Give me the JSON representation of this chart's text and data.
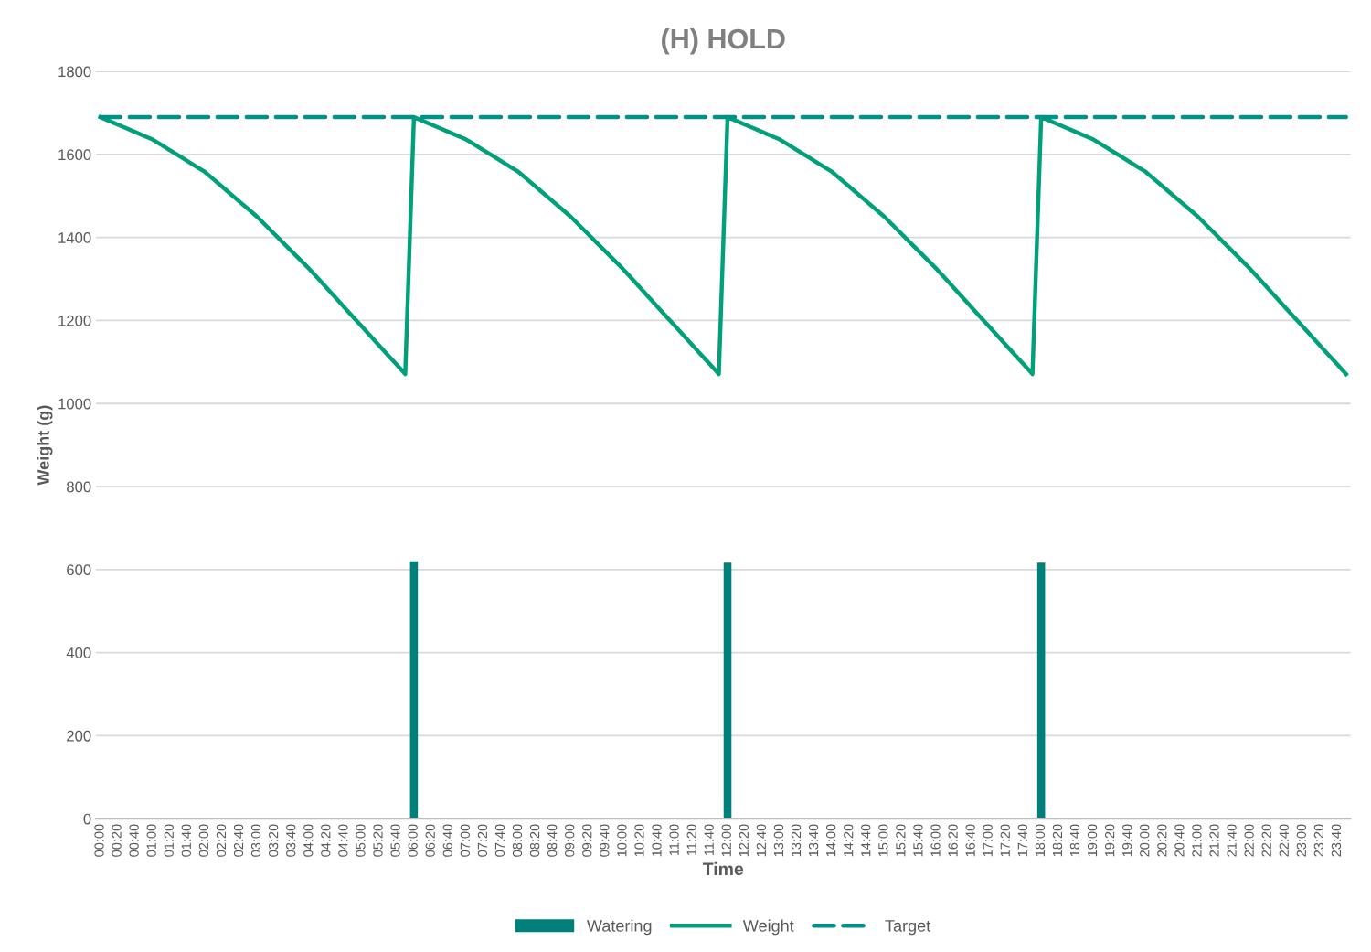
{
  "chart_data": {
    "type": "bar",
    "title": "(H) HOLD",
    "xlabel": "Time",
    "ylabel": "Weight (g)",
    "categories": [
      "00:00",
      null,
      "00:20",
      null,
      "00:40",
      null,
      "01:00",
      null,
      "01:20",
      null,
      "01:40",
      null,
      "02:00",
      null,
      "02:20",
      null,
      "02:40",
      null,
      "03:00",
      null,
      "03:20",
      null,
      "03:40",
      null,
      "04:00",
      null,
      "04:20",
      null,
      "04:40",
      null,
      "05:00",
      null,
      "05:20",
      null,
      "05:40",
      null,
      "06:00",
      null,
      "06:20",
      null,
      "06:40",
      null,
      "07:00",
      null,
      "07:20",
      null,
      "07:40",
      null,
      "08:00",
      null,
      "08:20",
      null,
      "08:40",
      null,
      "09:00",
      null,
      "09:20",
      null,
      "09:40",
      null,
      "10:00",
      null,
      "10:20",
      null,
      "10:40",
      null,
      "11:00",
      null,
      "11:20",
      null,
      "11:40",
      null,
      "12:00",
      null,
      "12:20",
      null,
      "12:40",
      null,
      "13:00",
      null,
      "13:20",
      null,
      "13:40",
      null,
      "14:00",
      null,
      "14:20",
      null,
      "14:40",
      null,
      "15:00",
      null,
      "15:20",
      null,
      "15:40",
      null,
      "16:00",
      null,
      "16:20",
      null,
      "16:40",
      null,
      "17:00",
      null,
      "17:20",
      null,
      "17:40",
      null,
      "18:00",
      null,
      "18:20",
      null,
      "18:40",
      null,
      "19:00",
      null,
      "19:20",
      null,
      "19:40",
      null,
      "20:00",
      null,
      "20:20",
      null,
      "20:40",
      null,
      "21:00",
      null,
      "21:20",
      null,
      "21:40",
      null,
      "22:00",
      null,
      "22:20",
      null,
      "22:40",
      null,
      "23:00",
      null,
      "23:20",
      null,
      "23:40",
      null
    ],
    "series": [
      {
        "name": "Watering",
        "color": "#00807a",
        "values": [
          null,
          null,
          null,
          null,
          null,
          null,
          null,
          null,
          null,
          null,
          null,
          null,
          null,
          null,
          null,
          null,
          null,
          null,
          null,
          null,
          null,
          null,
          null,
          null,
          null,
          null,
          null,
          null,
          null,
          null,
          null,
          null,
          null,
          null,
          null,
          null,
          620,
          null,
          null,
          null,
          null,
          null,
          null,
          null,
          null,
          null,
          null,
          null,
          null,
          null,
          null,
          null,
          null,
          null,
          null,
          null,
          null,
          null,
          null,
          null,
          null,
          null,
          null,
          null,
          null,
          null,
          null,
          null,
          null,
          null,
          null,
          null,
          617,
          null,
          null,
          null,
          null,
          null,
          null,
          null,
          null,
          null,
          null,
          null,
          null,
          null,
          null,
          null,
          null,
          null,
          null,
          null,
          null,
          null,
          null,
          null,
          null,
          null,
          null,
          null,
          null,
          null,
          null,
          null,
          null,
          null,
          null,
          null,
          617,
          null,
          null,
          null,
          null,
          null,
          null,
          null,
          null,
          null,
          null,
          null,
          null,
          null,
          null,
          null,
          null,
          null,
          null,
          null,
          null,
          null,
          null,
          null,
          null,
          null,
          null,
          null,
          null,
          null,
          null,
          null,
          null,
          null,
          null,
          null
        ]
      },
      {
        "name": "Weight",
        "type": "line",
        "color": "#00a07a",
        "line_style": "solid",
        "values": [
          1690,
          1681,
          1672,
          1663,
          1654,
          1645,
          1636,
          1623,
          1610,
          1597,
          1584,
          1571,
          1558,
          1540,
          1522,
          1504,
          1486,
          1468,
          1450,
          1429,
          1408,
          1387,
          1366,
          1345,
          1324,
          1301,
          1278,
          1255,
          1232,
          1209,
          1186,
          1163,
          1140,
          1117,
          1094,
          1071,
          1690,
          1681,
          1672,
          1663,
          1654,
          1645,
          1636,
          1623,
          1610,
          1597,
          1584,
          1571,
          1558,
          1540,
          1522,
          1504,
          1486,
          1468,
          1450,
          1429,
          1408,
          1387,
          1366,
          1345,
          1324,
          1301,
          1278,
          1255,
          1232,
          1209,
          1186,
          1163,
          1140,
          1117,
          1094,
          1071,
          1690,
          1681,
          1672,
          1663,
          1654,
          1645,
          1636,
          1623,
          1610,
          1597,
          1584,
          1571,
          1558,
          1540,
          1522,
          1504,
          1486,
          1468,
          1450,
          1429,
          1408,
          1387,
          1366,
          1345,
          1324,
          1301,
          1278,
          1255,
          1232,
          1209,
          1186,
          1163,
          1140,
          1117,
          1094,
          1071,
          1690,
          1681,
          1672,
          1663,
          1654,
          1645,
          1636,
          1623,
          1610,
          1597,
          1584,
          1571,
          1558,
          1540,
          1522,
          1504,
          1486,
          1468,
          1450,
          1429,
          1408,
          1387,
          1366,
          1345,
          1324,
          1301,
          1278,
          1255,
          1232,
          1209,
          1186,
          1163,
          1140,
          1117,
          1094,
          1071
        ]
      },
      {
        "name": "Target",
        "type": "line",
        "color": "#00918a",
        "line_style": "dashed",
        "values": [
          1690,
          1690,
          1690,
          1690,
          1690,
          1690,
          1690,
          1690,
          1690,
          1690,
          1690,
          1690,
          1690,
          1690,
          1690,
          1690,
          1690,
          1690,
          1690,
          1690,
          1690,
          1690,
          1690,
          1690,
          1690,
          1690,
          1690,
          1690,
          1690,
          1690,
          1690,
          1690,
          1690,
          1690,
          1690,
          1690,
          1690,
          1690,
          1690,
          1690,
          1690,
          1690,
          1690,
          1690,
          1690,
          1690,
          1690,
          1690,
          1690,
          1690,
          1690,
          1690,
          1690,
          1690,
          1690,
          1690,
          1690,
          1690,
          1690,
          1690,
          1690,
          1690,
          1690,
          1690,
          1690,
          1690,
          1690,
          1690,
          1690,
          1690,
          1690,
          1690,
          1690,
          1690,
          1690,
          1690,
          1690,
          1690,
          1690,
          1690,
          1690,
          1690,
          1690,
          1690,
          1690,
          1690,
          1690,
          1690,
          1690,
          1690,
          1690,
          1690,
          1690,
          1690,
          1690,
          1690,
          1690,
          1690,
          1690,
          1690,
          1690,
          1690,
          1690,
          1690,
          1690,
          1690,
          1690,
          1690,
          1690,
          1690,
          1690,
          1690,
          1690,
          1690,
          1690,
          1690,
          1690,
          1690,
          1690,
          1690,
          1690,
          1690,
          1690,
          1690,
          1690,
          1690,
          1690,
          1690,
          1690,
          1690,
          1690,
          1690,
          1690,
          1690,
          1690,
          1690,
          1690,
          1690,
          1690,
          1690,
          1690,
          1690,
          1690,
          1690
        ]
      }
    ],
    "ylim": [
      0,
      1800
    ],
    "yticks": [
      0,
      200,
      400,
      600,
      800,
      1000,
      1200,
      1400,
      1600,
      1800
    ],
    "grid": "y",
    "legend": "bottom"
  }
}
